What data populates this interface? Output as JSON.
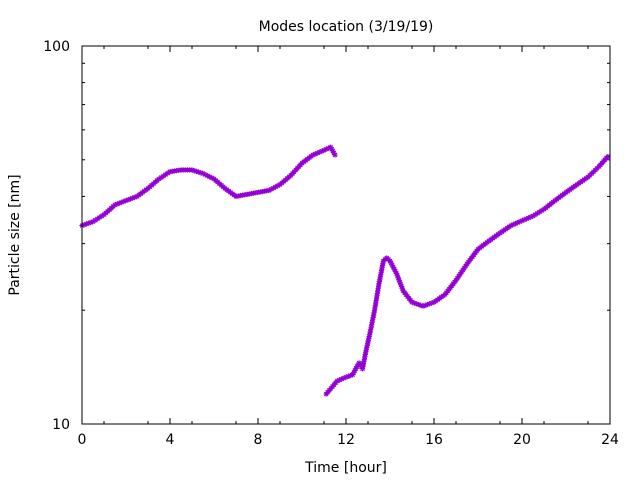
{
  "chart_data": {
    "type": "scatter",
    "title": "Modes location (3/19/19)",
    "xlabel": "Time [hour]",
    "ylabel": "Particle size [nm]",
    "xlim": [
      0,
      24
    ],
    "ylim": [
      10,
      100
    ],
    "yscale": "log",
    "xticks": [
      0,
      4,
      8,
      12,
      16,
      20,
      24
    ],
    "xtick_labels": [
      "0",
      "4",
      "8",
      "12",
      "16",
      "20",
      "24"
    ],
    "yticks": [
      10,
      100
    ],
    "ytick_labels": [
      "10",
      "100"
    ],
    "grid": false,
    "legend": "none",
    "marker_color": "#9400D3",
    "marker_symbol": "asterisk",
    "series": [
      {
        "points": [
          [
            0.0,
            33.5
          ],
          [
            0.5,
            34.3
          ],
          [
            1.0,
            35.8
          ],
          [
            1.5,
            38.0
          ],
          [
            2.0,
            39.0
          ],
          [
            2.5,
            40.0
          ],
          [
            3.0,
            42.0
          ],
          [
            3.5,
            44.5
          ],
          [
            4.0,
            46.5
          ],
          [
            4.5,
            47.0
          ],
          [
            5.0,
            47.0
          ],
          [
            5.5,
            46.0
          ],
          [
            6.0,
            44.5
          ],
          [
            6.5,
            42.0
          ],
          [
            7.0,
            40.0
          ],
          [
            7.5,
            40.5
          ],
          [
            8.0,
            41.0
          ],
          [
            8.5,
            41.5
          ],
          [
            9.0,
            43.0
          ],
          [
            9.5,
            45.5
          ],
          [
            10.0,
            49.0
          ],
          [
            10.5,
            51.5
          ],
          [
            11.0,
            53.0
          ],
          [
            11.3,
            54.0
          ],
          [
            11.5,
            51.5
          ]
        ]
      },
      {
        "points": [
          [
            11.1,
            12.0
          ],
          [
            11.6,
            13.0
          ],
          [
            12.0,
            13.3
          ],
          [
            12.3,
            13.5
          ],
          [
            12.5,
            14.2
          ],
          [
            12.6,
            14.5
          ],
          [
            12.75,
            14.0
          ],
          [
            12.9,
            15.5
          ],
          [
            13.1,
            17.5
          ],
          [
            13.3,
            20.0
          ],
          [
            13.5,
            23.5
          ],
          [
            13.7,
            27.0
          ],
          [
            13.85,
            27.5
          ],
          [
            14.0,
            27.0
          ],
          [
            14.3,
            25.0
          ],
          [
            14.6,
            22.5
          ],
          [
            15.0,
            21.0
          ],
          [
            15.5,
            20.5
          ],
          [
            16.0,
            21.0
          ],
          [
            16.5,
            22.0
          ],
          [
            17.0,
            24.0
          ],
          [
            17.5,
            26.5
          ],
          [
            18.0,
            29.0
          ],
          [
            18.5,
            30.5
          ],
          [
            19.0,
            32.0
          ],
          [
            19.5,
            33.5
          ],
          [
            20.0,
            34.5
          ],
          [
            20.5,
            35.5
          ],
          [
            21.0,
            37.0
          ],
          [
            21.5,
            39.0
          ],
          [
            22.0,
            41.0
          ],
          [
            22.5,
            43.0
          ],
          [
            23.0,
            45.0
          ],
          [
            23.5,
            48.0
          ],
          [
            23.9,
            51.0
          ]
        ]
      }
    ]
  }
}
